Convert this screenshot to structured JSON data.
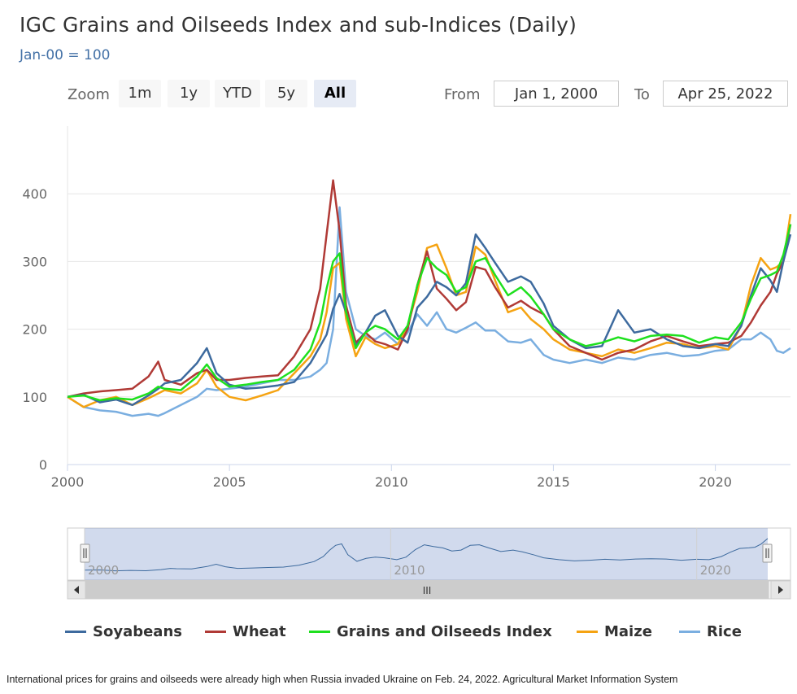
{
  "title": "IGC Grains and Oilseeds Index and sub-Indices (Daily)",
  "subtitle": "Jan-00 = 100",
  "toolbar": {
    "zoom_label": "Zoom",
    "zoom_buttons": [
      "1m",
      "1y",
      "YTD",
      "5y",
      "All"
    ],
    "active_zoom": "All",
    "from_label": "From",
    "from_value": "Jan 1, 2000",
    "to_label": "To",
    "to_value": "Apr 25, 2022"
  },
  "navigator": {
    "tick_labels": [
      "2000",
      "2010",
      "2020"
    ],
    "scrollbar_grip": "III"
  },
  "caption": "International prices for grains and oilseeds were already high when Russia invaded Ukraine on Feb. 24, 2022. Agricultural Market Information System",
  "chart_data": {
    "type": "line",
    "title": "IGC Grains and Oilseeds Index and sub-Indices (Daily)",
    "subtitle": "Jan-00 = 100",
    "x_ticks": [
      2000,
      2005,
      2010,
      2015,
      2020
    ],
    "y_ticks": [
      0,
      100,
      200,
      300,
      400
    ],
    "xlim": [
      2000,
      2022.32
    ],
    "ylim": [
      0,
      500
    ],
    "grid": true,
    "legend_position": "bottom",
    "x": [
      2000,
      2000.5,
      2001,
      2001.5,
      2002,
      2002.5,
      2002.8,
      2003,
      2003.5,
      2004,
      2004.3,
      2004.6,
      2005,
      2005.5,
      2006,
      2006.5,
      2007,
      2007.5,
      2007.8,
      2008.0,
      2008.2,
      2008.4,
      2008.6,
      2008.9,
      2009.2,
      2009.5,
      2009.8,
      2010.2,
      2010.5,
      2010.8,
      2011.1,
      2011.4,
      2011.7,
      2012.0,
      2012.3,
      2012.6,
      2012.9,
      2013.2,
      2013.6,
      2014.0,
      2014.3,
      2014.7,
      2015.0,
      2015.5,
      2016.0,
      2016.5,
      2017.0,
      2017.5,
      2018.0,
      2018.5,
      2019.0,
      2019.5,
      2020.0,
      2020.4,
      2020.8,
      2021.1,
      2021.4,
      2021.7,
      2021.9,
      2022.1,
      2022.32
    ],
    "series": [
      {
        "name": "Soyabeans",
        "color": "#3d6a9e",
        "values": [
          100,
          103,
          92,
          96,
          88,
          102,
          112,
          120,
          125,
          150,
          172,
          135,
          118,
          112,
          114,
          117,
          122,
          150,
          175,
          192,
          230,
          252,
          225,
          175,
          195,
          220,
          228,
          190,
          180,
          232,
          248,
          270,
          262,
          250,
          268,
          340,
          320,
          298,
          270,
          278,
          270,
          238,
          205,
          185,
          172,
          175,
          228,
          195,
          200,
          185,
          175,
          172,
          178,
          175,
          205,
          250,
          290,
          272,
          255,
          300,
          340
        ]
      },
      {
        "name": "Wheat",
        "color": "#b03a36",
        "values": [
          100,
          105,
          108,
          110,
          112,
          130,
          152,
          125,
          118,
          135,
          140,
          125,
          125,
          128,
          130,
          132,
          160,
          200,
          260,
          340,
          420,
          345,
          235,
          180,
          195,
          182,
          178,
          170,
          200,
          265,
          315,
          260,
          245,
          228,
          240,
          292,
          288,
          262,
          232,
          242,
          232,
          222,
          200,
          175,
          165,
          155,
          165,
          170,
          182,
          190,
          182,
          175,
          178,
          180,
          190,
          210,
          235,
          255,
          282,
          300,
          355
        ]
      },
      {
        "name": "Grains and Oilseeds Index",
        "color": "#1ee01e",
        "values": [
          100,
          102,
          95,
          98,
          96,
          105,
          115,
          112,
          110,
          130,
          148,
          128,
          115,
          118,
          122,
          125,
          140,
          170,
          210,
          260,
          300,
          312,
          225,
          172,
          195,
          205,
          200,
          185,
          205,
          265,
          305,
          290,
          280,
          255,
          262,
          300,
          305,
          280,
          250,
          262,
          248,
          222,
          200,
          185,
          175,
          180,
          188,
          182,
          190,
          192,
          190,
          180,
          188,
          185,
          210,
          245,
          275,
          280,
          285,
          310,
          355
        ]
      },
      {
        "name": "Maize",
        "color": "#f5a312",
        "values": [
          100,
          85,
          95,
          100,
          88,
          98,
          105,
          110,
          105,
          120,
          140,
          115,
          100,
          95,
          102,
          110,
          135,
          160,
          185,
          225,
          290,
          298,
          215,
          160,
          188,
          178,
          172,
          178,
          205,
          255,
          320,
          325,
          290,
          250,
          255,
          322,
          310,
          272,
          225,
          232,
          215,
          200,
          185,
          170,
          165,
          160,
          170,
          165,
          172,
          180,
          178,
          172,
          175,
          170,
          205,
          265,
          305,
          288,
          292,
          300,
          370
        ]
      },
      {
        "name": "Rice",
        "color": "#7aaee0",
        "values": [
          100,
          85,
          80,
          78,
          72,
          75,
          72,
          76,
          88,
          100,
          112,
          110,
          112,
          115,
          120,
          125,
          125,
          130,
          140,
          150,
          200,
          380,
          255,
          200,
          190,
          185,
          195,
          178,
          195,
          222,
          205,
          225,
          200,
          195,
          202,
          210,
          198,
          198,
          182,
          180,
          185,
          162,
          155,
          150,
          155,
          150,
          158,
          155,
          162,
          165,
          160,
          162,
          168,
          170,
          185,
          185,
          195,
          185,
          168,
          165,
          172
        ]
      }
    ]
  }
}
